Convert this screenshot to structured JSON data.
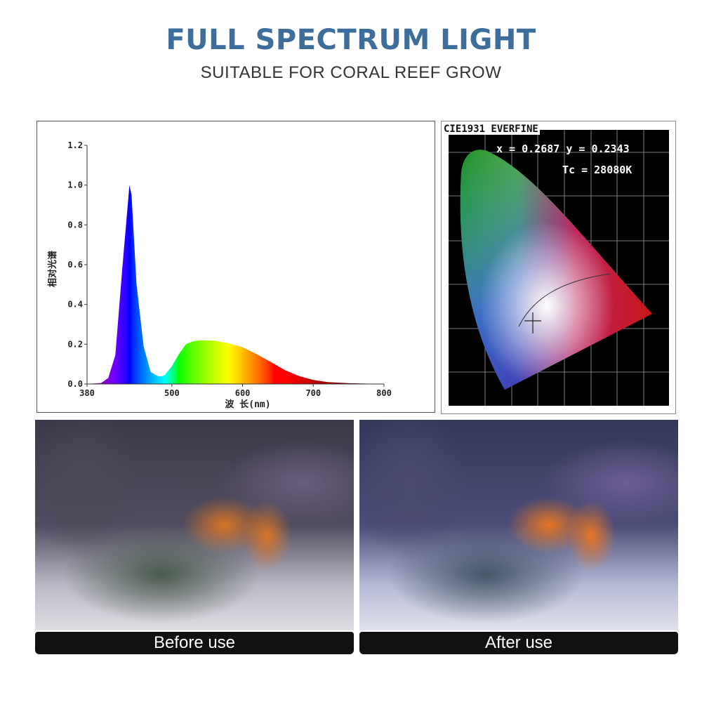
{
  "header": {
    "title": "FULL SPECTRUM LIGHT",
    "subtitle": "SUITABLE FOR CORAL REEF GROW"
  },
  "chart_data": {
    "type": "area",
    "title": "",
    "xlabel": "波 长(nm)",
    "ylabel": "相对光谱",
    "xlim": [
      380,
      800
    ],
    "ylim": [
      0,
      1.2
    ],
    "x_ticks": [
      "380",
      "500",
      "600",
      "700",
      "800"
    ],
    "y_ticks": [
      "0.0",
      "0.2",
      "0.4",
      "0.6",
      "0.8",
      "1.0",
      "1.2"
    ],
    "fill": "visible-spectrum gradient by wavelength",
    "grid": false,
    "x": [
      380,
      400,
      410,
      420,
      430,
      440,
      443,
      450,
      460,
      470,
      480,
      485,
      490,
      500,
      510,
      520,
      530,
      540,
      560,
      580,
      600,
      620,
      640,
      660,
      680,
      700,
      720,
      750,
      800
    ],
    "y": [
      0.0,
      0.005,
      0.03,
      0.145,
      0.59,
      1.0,
      0.95,
      0.5,
      0.19,
      0.06,
      0.04,
      0.038,
      0.045,
      0.09,
      0.15,
      0.2,
      0.215,
      0.22,
      0.218,
      0.205,
      0.185,
      0.15,
      0.11,
      0.07,
      0.04,
      0.02,
      0.01,
      0.004,
      0.0
    ]
  },
  "cie": {
    "label": "CIE1931 EVERFINE",
    "coords": "x = 0.2687 y = 0.2343",
    "cct": "Tc = 28080K"
  },
  "photos": [
    {
      "caption": "Before use"
    },
    {
      "caption": "After use"
    }
  ]
}
